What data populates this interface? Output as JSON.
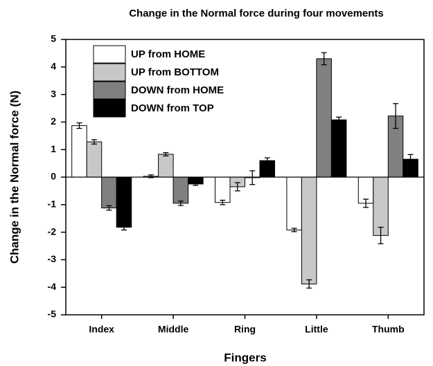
{
  "chart_data": {
    "type": "bar",
    "title": "Change in the Normal force during four movements",
    "x_label": "Fingers",
    "y_label": "Change in the Normal force (N)",
    "categories": [
      "Index",
      "Middle",
      "Ring",
      "Little",
      "Thumb"
    ],
    "series": [
      {
        "name": "UP from HOME",
        "color": "#ffffff",
        "values": [
          1.87,
          0.03,
          -0.92,
          -1.92,
          -0.95
        ],
        "errors": [
          0.1,
          0.05,
          0.08,
          0.06,
          0.15
        ]
      },
      {
        "name": "UP from BOTTOM",
        "color": "#c8c8c8",
        "values": [
          1.28,
          0.83,
          -0.35,
          -3.88,
          -2.12
        ],
        "errors": [
          0.08,
          0.06,
          0.15,
          0.15,
          0.3
        ]
      },
      {
        "name": "DOWN from HOME",
        "color": "#808080",
        "values": [
          -1.12,
          -0.95,
          -0.02,
          4.3,
          2.22
        ],
        "errors": [
          0.08,
          0.08,
          0.25,
          0.22,
          0.45
        ]
      },
      {
        "name": "DOWN from TOP",
        "color": "#000000",
        "values": [
          -1.82,
          -0.25,
          0.6,
          2.08,
          0.65
        ],
        "errors": [
          0.1,
          0.05,
          0.1,
          0.1,
          0.17
        ]
      }
    ],
    "ylim": [
      -5,
      5
    ],
    "yticks": [
      -5,
      -4,
      -3,
      -2,
      -1,
      0,
      1,
      2,
      3,
      4,
      5
    ],
    "grid": false,
    "legend": "upper left"
  }
}
